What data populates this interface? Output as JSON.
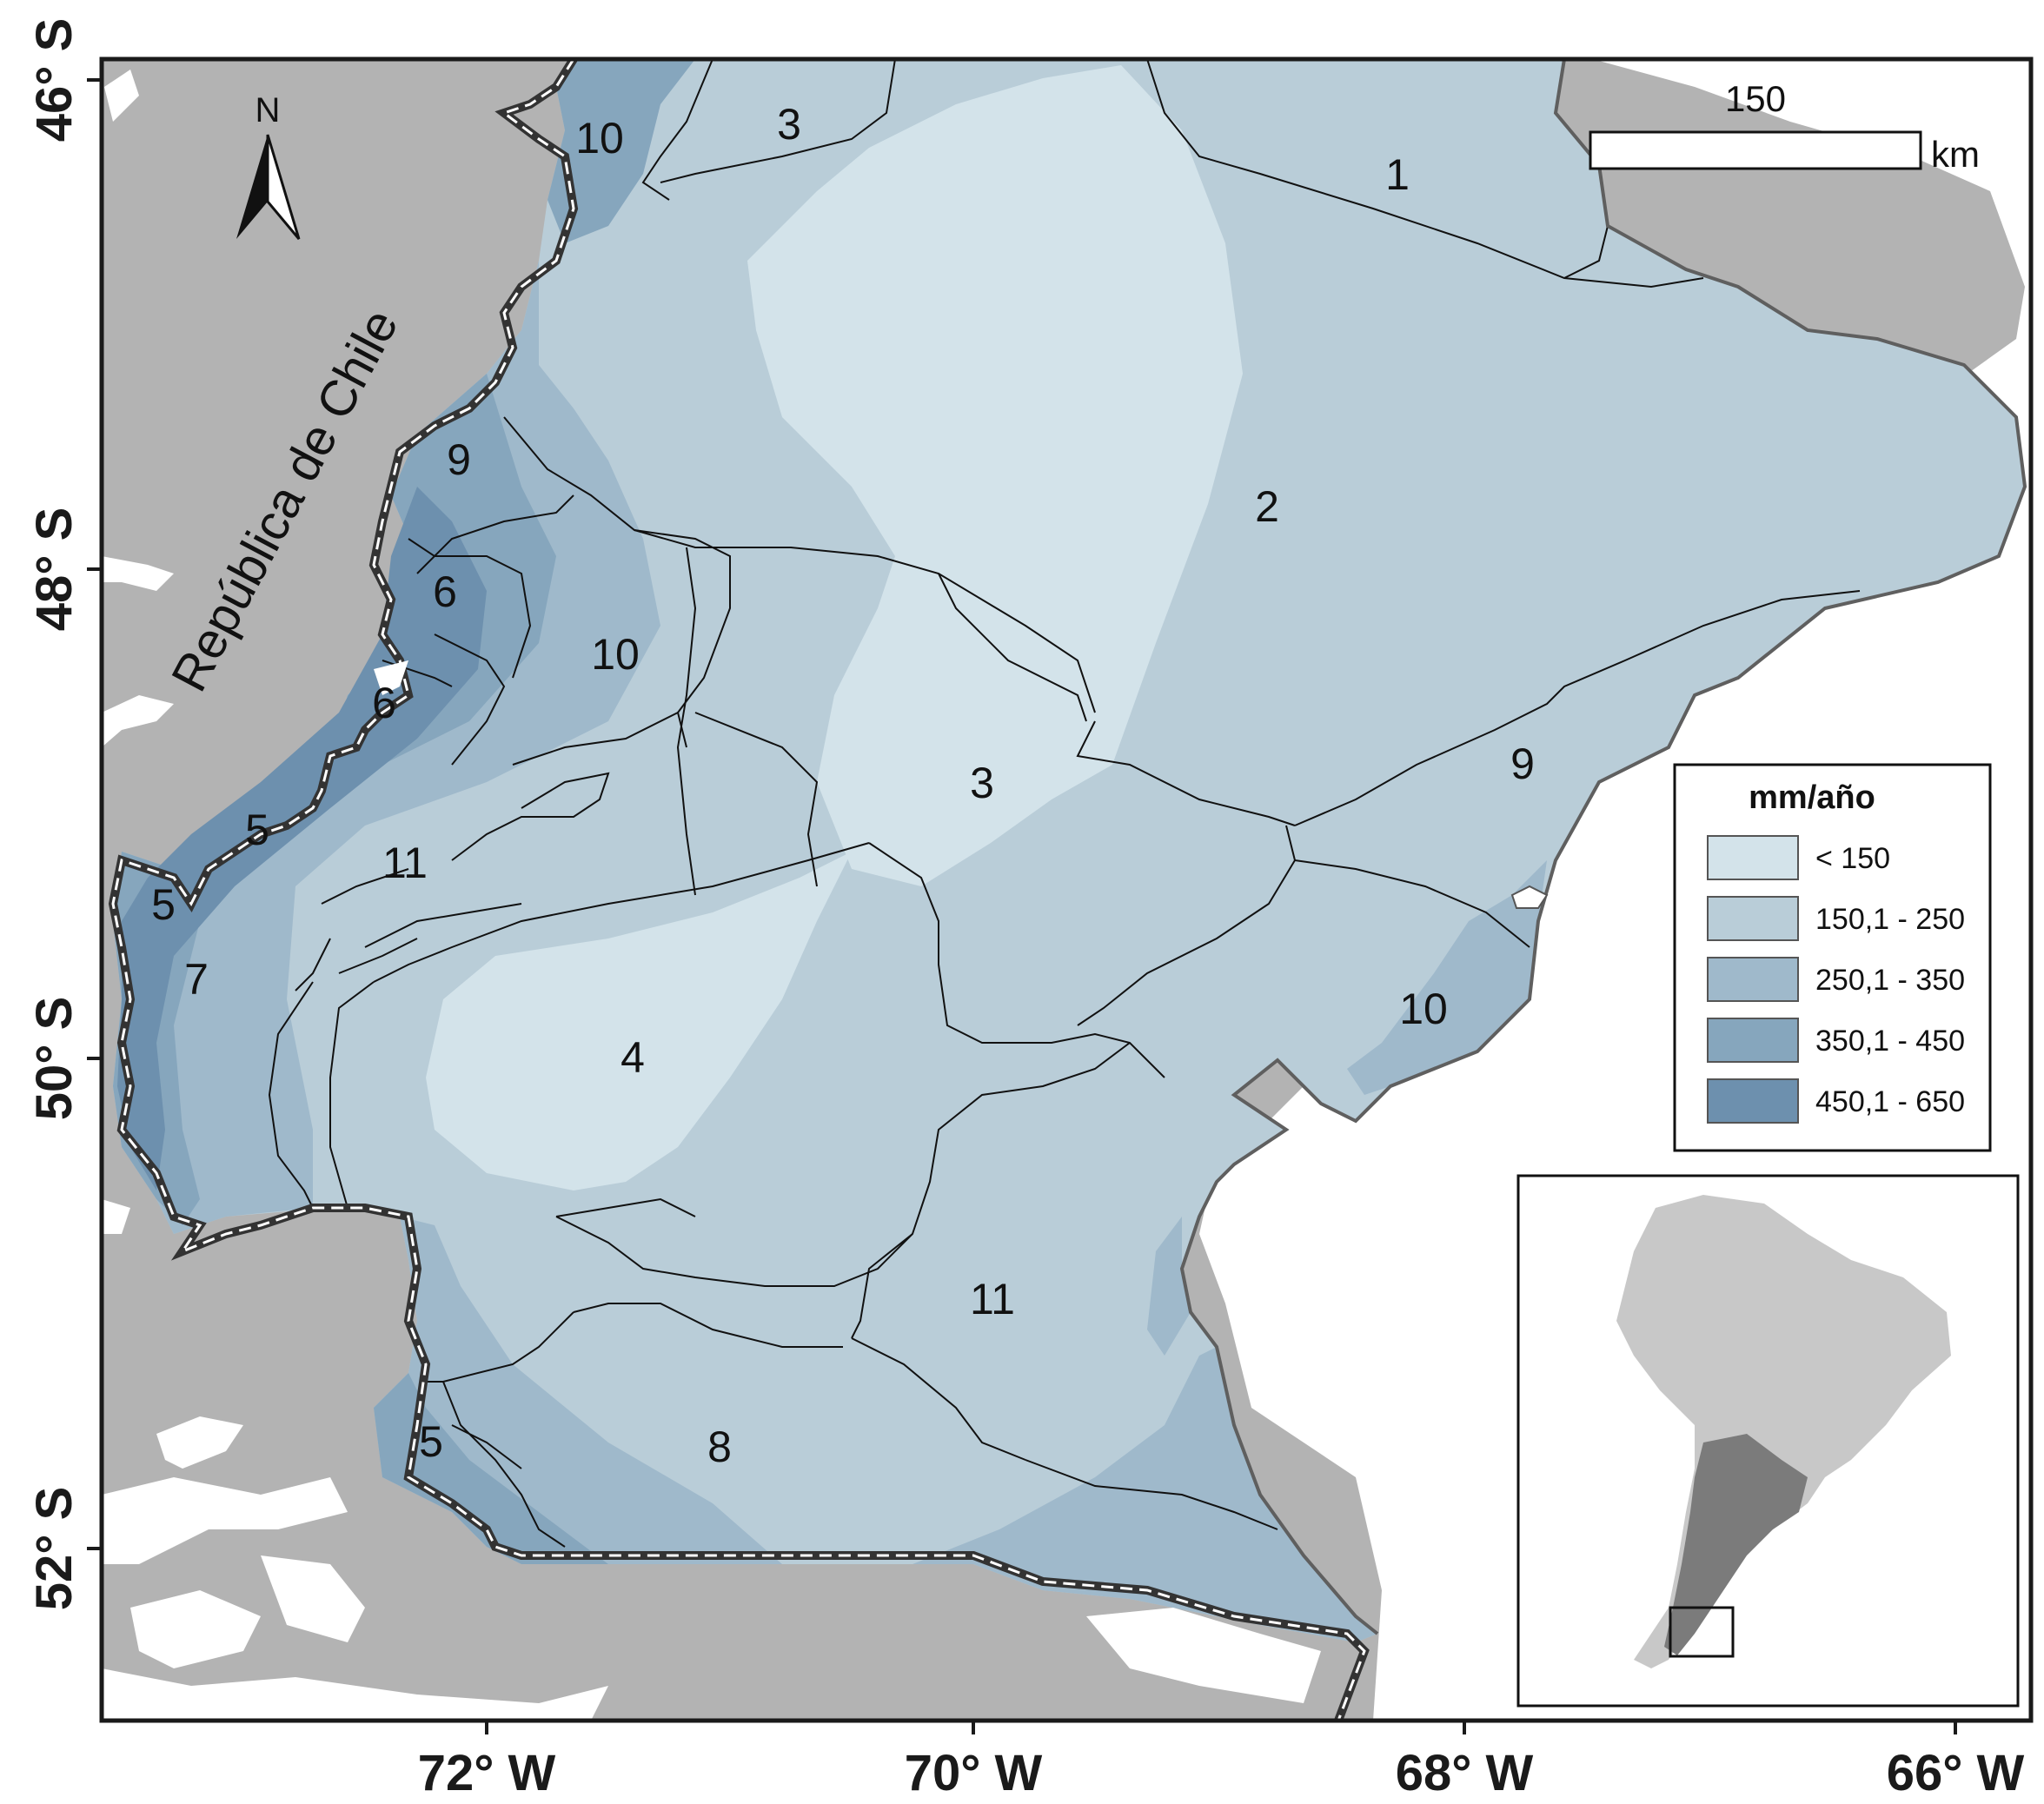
{
  "axes": {
    "latitude_labels": [
      "46° S",
      "48° S",
      "50° S",
      "52° S"
    ],
    "longitude_labels": [
      "72° W",
      "70° W",
      "68° W",
      "66° W"
    ]
  },
  "north_arrow": {
    "label": "N",
    "icon": "north-arrow-icon"
  },
  "scale_bar": {
    "value": "150",
    "unit": "km"
  },
  "country_label": "República de Chile",
  "zone_labels": [
    "1",
    "2",
    "3",
    "3",
    "4",
    "5",
    "5",
    "5",
    "6",
    "6",
    "7",
    "8",
    "9",
    "9",
    "10",
    "10",
    "10",
    "11",
    "11"
  ],
  "legend": {
    "title": "mm/año",
    "classes": [
      {
        "label": "< 150",
        "color": "#d3e3ea"
      },
      {
        "label": "150,1 - 250",
        "color": "#b9cdd8"
      },
      {
        "label": "250,1 - 350",
        "color": "#9fb9cb"
      },
      {
        "label": "350,1 - 450",
        "color": "#86a6bd"
      },
      {
        "label": "450,1 - 650",
        "color": "#6d90ae"
      }
    ]
  },
  "colors": {
    "land": "#b3b3b3",
    "sea": "#ffffff",
    "frame": "#1a1a1a"
  },
  "inset": {
    "description_icon": "south-america-locator-icon"
  }
}
